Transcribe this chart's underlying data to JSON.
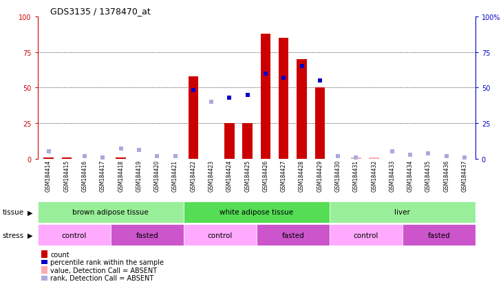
{
  "title": "GDS3135 / 1378470_at",
  "samples": [
    "GSM184414",
    "GSM184415",
    "GSM184416",
    "GSM184417",
    "GSM184418",
    "GSM184419",
    "GSM184420",
    "GSM184421",
    "GSM184422",
    "GSM184423",
    "GSM184424",
    "GSM184425",
    "GSM184426",
    "GSM184427",
    "GSM184428",
    "GSM184429",
    "GSM184430",
    "GSM184431",
    "GSM184432",
    "GSM184433",
    "GSM184434",
    "GSM184435",
    "GSM184436",
    "GSM184437"
  ],
  "count": [
    1,
    1,
    0,
    0,
    1,
    0,
    0,
    0,
    58,
    0,
    25,
    25,
    88,
    85,
    70,
    50,
    0,
    1,
    1,
    0,
    0,
    0,
    0,
    0
  ],
  "rank": [
    5,
    0,
    2,
    1,
    7,
    6,
    2,
    2,
    48,
    40,
    43,
    45,
    60,
    57,
    65,
    55,
    2,
    1,
    0,
    5,
    3,
    4,
    2,
    1
  ],
  "count_absent": [
    false,
    false,
    false,
    false,
    false,
    false,
    false,
    false,
    false,
    false,
    false,
    false,
    false,
    false,
    false,
    false,
    false,
    true,
    true,
    false,
    false,
    false,
    false,
    false
  ],
  "rank_absent": [
    true,
    true,
    true,
    true,
    true,
    true,
    true,
    true,
    false,
    true,
    false,
    false,
    false,
    false,
    false,
    false,
    true,
    true,
    true,
    true,
    true,
    true,
    true,
    true
  ],
  "tissue_groups": [
    {
      "label": "brown adipose tissue",
      "start": 0,
      "end": 8,
      "color": "#99ee99"
    },
    {
      "label": "white adipose tissue",
      "start": 8,
      "end": 16,
      "color": "#55dd55"
    },
    {
      "label": "liver",
      "start": 16,
      "end": 24,
      "color": "#99ee99"
    }
  ],
  "stress_groups": [
    {
      "label": "control",
      "start": 0,
      "end": 4,
      "color": "#ffaaff"
    },
    {
      "label": "fasted",
      "start": 4,
      "end": 8,
      "color": "#cc55cc"
    },
    {
      "label": "control",
      "start": 8,
      "end": 12,
      "color": "#ffaaff"
    },
    {
      "label": "fasted",
      "start": 12,
      "end": 16,
      "color": "#cc55cc"
    },
    {
      "label": "control",
      "start": 16,
      "end": 20,
      "color": "#ffaaff"
    },
    {
      "label": "fasted",
      "start": 20,
      "end": 24,
      "color": "#cc55cc"
    }
  ],
  "ylim": [
    0,
    100
  ],
  "bar_color_present": "#cc0000",
  "bar_color_absent": "#ffaaaa",
  "rank_color_present": "#0000cc",
  "rank_color_absent": "#aaaadd",
  "left_tick_color": "#cc0000",
  "right_tick_color": "#0000cc",
  "xticklabel_bg": "#cccccc"
}
